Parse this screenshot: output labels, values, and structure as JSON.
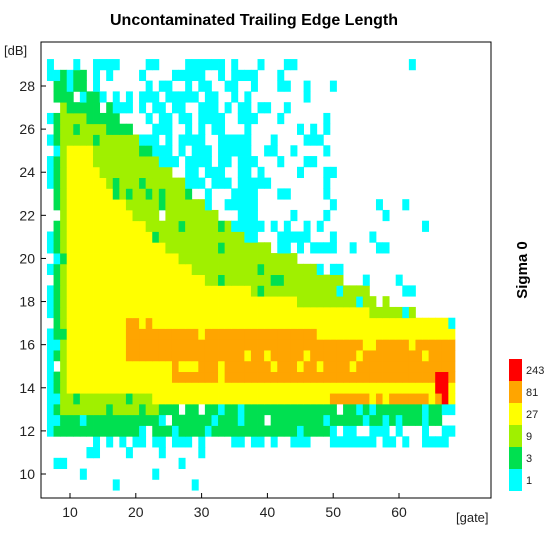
{
  "chart_data": {
    "type": "heatmap",
    "title": "Uncontaminated Trailing Edge Length",
    "xlabel": "[gate]",
    "ylabel": "[dB]",
    "colorbar_label": "Sigma 0",
    "x_ticks": [
      "10",
      "20",
      "30",
      "40",
      "50",
      "60"
    ],
    "y_ticks": [
      "10",
      "12",
      "14",
      "16",
      "18",
      "20",
      "22",
      "24",
      "26",
      "28"
    ],
    "x_range": [
      5,
      70
    ],
    "y_range": [
      9,
      30
    ],
    "colorbar": [
      {
        "label": "1",
        "color": "#00ffff"
      },
      {
        "label": "3",
        "color": "#00e050"
      },
      {
        "label": "9",
        "color": "#a0f000"
      },
      {
        "label": "27",
        "color": "#ffff00"
      },
      {
        "label": "81",
        "color": "#ffa500"
      },
      {
        "label": "243",
        "color": "#ff0000"
      }
    ],
    "color_levels": [
      "#ffffff",
      "#00ffff",
      "#00e050",
      "#a0f000",
      "#ffff00",
      "#ffa500",
      "#ff0000"
    ],
    "grid": false
  }
}
